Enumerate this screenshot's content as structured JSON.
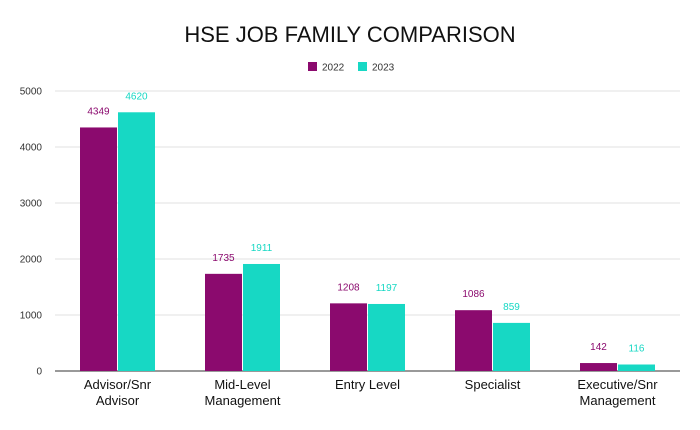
{
  "chart_data": {
    "type": "bar",
    "title": "HSE JOB FAMILY COMPARISON",
    "xlabel": "",
    "ylabel": "",
    "ylim": [
      0,
      5000
    ],
    "yticks": [
      "0",
      "1000",
      "2000",
      "3000",
      "4000",
      "5000"
    ],
    "grid": true,
    "legend_position": "top-center",
    "categories": [
      [
        "Advisor/Snr",
        "Advisor"
      ],
      [
        "Mid-Level",
        "Management"
      ],
      [
        "Entry Level"
      ],
      [
        "Specialist"
      ],
      [
        "Executive/Snr",
        "Management"
      ]
    ],
    "series": [
      {
        "name": "2022",
        "color": "#8b0a6e",
        "values": [
          4349,
          1735,
          1208,
          1086,
          142
        ],
        "labels": [
          "4349",
          "1735",
          "1208",
          "1086",
          "142"
        ]
      },
      {
        "name": "2023",
        "color": "#17d8c4",
        "values": [
          4620,
          1911,
          1197,
          859,
          116
        ],
        "labels": [
          "4620",
          "1911",
          "1197",
          "859",
          "116"
        ]
      }
    ]
  }
}
